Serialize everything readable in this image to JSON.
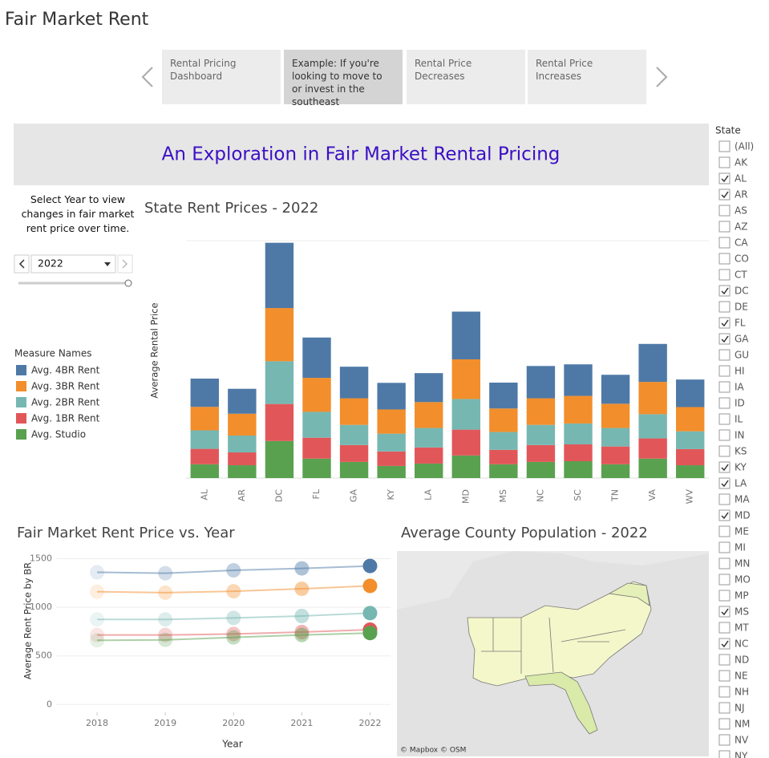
{
  "header": {
    "title": "Fair Market Rent"
  },
  "story_tabs": [
    {
      "label": "Rental Pricing Dashboard",
      "selected": false
    },
    {
      "label": "Example: If you're looking to move to or invest in the southeast",
      "selected": true
    },
    {
      "label": "Rental Price Decreases",
      "selected": false
    },
    {
      "label": "Rental Price Increases",
      "selected": false
    }
  ],
  "banner": {
    "title": "An Exploration in Fair Market Rental Pricing"
  },
  "year_filter": {
    "label": "Select Year to view changes in fair market rent price over time.",
    "value": "2022"
  },
  "chart_data": [
    {
      "type": "bar",
      "stacked": true,
      "title": "State Rent Prices - 2022",
      "y_label": "Average Rental Price",
      "legend_title": "Measure Names",
      "categories": [
        "AL",
        "AR",
        "DC",
        "FL",
        "GA",
        "KY",
        "LA",
        "MD",
        "MS",
        "NC",
        "SC",
        "TN",
        "VA",
        "WV"
      ],
      "series": [
        {
          "name": "Avg. 4BR Rent",
          "color": "#4e79a7",
          "values": [
            1190,
            1050,
            2750,
            1700,
            1330,
            1120,
            1220,
            2010,
            1090,
            1360,
            1330,
            1220,
            1600,
            1160
          ]
        },
        {
          "name": "Avg. 3BR Rent",
          "color": "#f28e2b",
          "values": [
            990,
            920,
            2240,
            1430,
            1120,
            1020,
            1090,
            1670,
            990,
            1120,
            1160,
            1020,
            1360,
            1020
          ]
        },
        {
          "name": "Avg. 2BR Rent",
          "color": "#76b7b2",
          "values": [
            780,
            710,
            1800,
            1090,
            850,
            750,
            820,
            1290,
            750,
            850,
            880,
            780,
            1020,
            750
          ]
        },
        {
          "name": "Avg. 1BR Rent",
          "color": "#e15759",
          "values": [
            650,
            540,
            1560,
            880,
            710,
            610,
            680,
            1090,
            610,
            710,
            710,
            750,
            850,
            680
          ]
        },
        {
          "name": "Avg. Studio",
          "color": "#59a14f",
          "values": [
            580,
            540,
            1560,
            820,
            680,
            510,
            610,
            950,
            580,
            680,
            710,
            580,
            820,
            540
          ]
        }
      ],
      "ylim": [
        0,
        10000
      ]
    },
    {
      "type": "scatter",
      "trend_lines": true,
      "title": "Fair Market Rent Price vs. Year",
      "y_label": "Average Rent Price by BR",
      "x_label": "Year",
      "x": [
        2018,
        2019,
        2020,
        2021,
        2022
      ],
      "series": [
        {
          "color": "#4e79a7",
          "values": [
            1360,
            1350,
            1380,
            1400,
            1425
          ]
        },
        {
          "color": "#f28e2b",
          "values": [
            1160,
            1150,
            1165,
            1190,
            1220
          ]
        },
        {
          "color": "#76b7b2",
          "values": [
            875,
            875,
            890,
            910,
            940
          ]
        },
        {
          "color": "#e15759",
          "values": [
            715,
            715,
            725,
            745,
            770
          ]
        },
        {
          "color": "#59a14f",
          "values": [
            660,
            665,
            690,
            715,
            735
          ]
        }
      ],
      "xlim": [
        2017.4,
        2022.3
      ],
      "xticks": [
        2018,
        2019,
        2020,
        2021,
        2022
      ],
      "ylim": [
        -80,
        1570
      ],
      "yticks": [
        0,
        500,
        1000,
        1500
      ],
      "grid": true
    }
  ],
  "map": {
    "title": "Average County Population - 2022",
    "attribution": "© Mapbox © OSM"
  },
  "state_filter": {
    "title": "State",
    "items": [
      {
        "label": "(All)",
        "checked": false
      },
      {
        "label": "AK",
        "checked": false
      },
      {
        "label": "AL",
        "checked": true
      },
      {
        "label": "AR",
        "checked": true
      },
      {
        "label": "AS",
        "checked": false
      },
      {
        "label": "AZ",
        "checked": false
      },
      {
        "label": "CA",
        "checked": false
      },
      {
        "label": "CO",
        "checked": false
      },
      {
        "label": "CT",
        "checked": false
      },
      {
        "label": "DC",
        "checked": true
      },
      {
        "label": "DE",
        "checked": false
      },
      {
        "label": "FL",
        "checked": true
      },
      {
        "label": "GA",
        "checked": true
      },
      {
        "label": "GU",
        "checked": false
      },
      {
        "label": "HI",
        "checked": false
      },
      {
        "label": "IA",
        "checked": false
      },
      {
        "label": "ID",
        "checked": false
      },
      {
        "label": "IL",
        "checked": false
      },
      {
        "label": "IN",
        "checked": false
      },
      {
        "label": "KS",
        "checked": false
      },
      {
        "label": "KY",
        "checked": true
      },
      {
        "label": "LA",
        "checked": true
      },
      {
        "label": "MA",
        "checked": false
      },
      {
        "label": "MD",
        "checked": true
      },
      {
        "label": "ME",
        "checked": false
      },
      {
        "label": "MI",
        "checked": false
      },
      {
        "label": "MN",
        "checked": false
      },
      {
        "label": "MO",
        "checked": false
      },
      {
        "label": "MP",
        "checked": false
      },
      {
        "label": "MS",
        "checked": true
      },
      {
        "label": "MT",
        "checked": false
      },
      {
        "label": "NC",
        "checked": true
      },
      {
        "label": "ND",
        "checked": false
      },
      {
        "label": "NE",
        "checked": false
      },
      {
        "label": "NH",
        "checked": false
      },
      {
        "label": "NJ",
        "checked": false
      },
      {
        "label": "NM",
        "checked": false
      },
      {
        "label": "NV",
        "checked": false
      },
      {
        "label": "NY",
        "checked": false
      }
    ]
  }
}
